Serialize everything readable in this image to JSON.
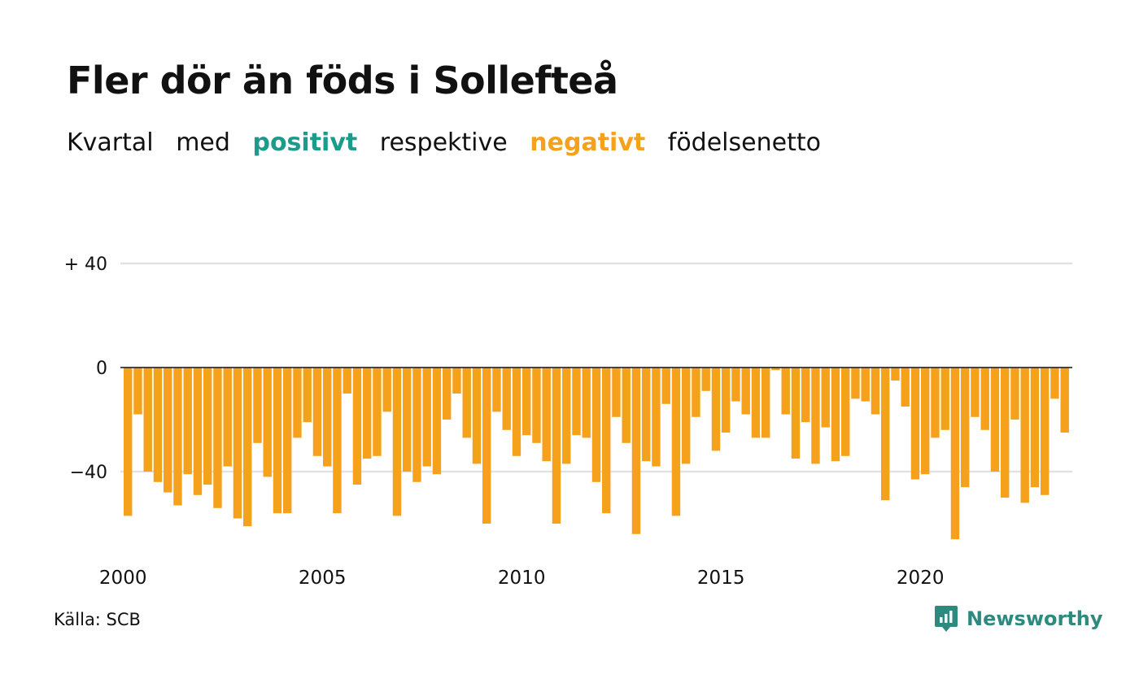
{
  "title": "Fler dör än föds i Sollefteå",
  "subtitle": {
    "w1": "Kvartal",
    "w2": "med",
    "w3": "positivt",
    "w4": "respektive",
    "w5": "negativt",
    "w6": "födelsenetto"
  },
  "colors": {
    "positive": "#1a9b8c",
    "negative": "#f5a11c",
    "grid": "#e2e2e2",
    "zero_line": "#111111",
    "brand": "#2e8a7e"
  },
  "chart_data": {
    "type": "bar",
    "x_label_type": "quarterly",
    "x_start": "2000 Q1",
    "x_ticks": [
      "2000",
      "2005",
      "2010",
      "2015",
      "2020"
    ],
    "y_ticks": [
      {
        "value": 40,
        "label": "+ 40"
      },
      {
        "value": 0,
        "label": "0"
      },
      {
        "value": -40,
        "label": "−40"
      }
    ],
    "ylim": [
      -70,
      40
    ],
    "grid": true,
    "values": [
      -57,
      -18,
      -40,
      -44,
      -48,
      -53,
      -41,
      -49,
      -45,
      -54,
      -38,
      -58,
      -61,
      -29,
      -42,
      -56,
      -56,
      -27,
      -21,
      -34,
      -38,
      -56,
      -10,
      -45,
      -35,
      -34,
      -17,
      -57,
      -40,
      -44,
      -38,
      -41,
      -20,
      -10,
      -27,
      -37,
      -60,
      -17,
      -24,
      -34,
      -26,
      -29,
      -36,
      -60,
      -37,
      -26,
      -27,
      -44,
      -56,
      -19,
      -29,
      -64,
      -36,
      -38,
      -14,
      -57,
      -37,
      -19,
      -9,
      -32,
      -25,
      -13,
      -18,
      -27,
      -27,
      -1,
      -18,
      -35,
      -21,
      -37,
      -23,
      -36,
      -34,
      -12,
      -13,
      -18,
      -51,
      -5,
      -15,
      -43,
      -41,
      -27,
      -24,
      -66,
      -46,
      -19,
      -24,
      -40,
      -50,
      -20,
      -52,
      -46,
      -49,
      -12,
      -25
    ]
  },
  "source": "Källa: SCB",
  "brand": {
    "name": "Newsworthy",
    "icon": "newsworthy-logo-icon"
  }
}
